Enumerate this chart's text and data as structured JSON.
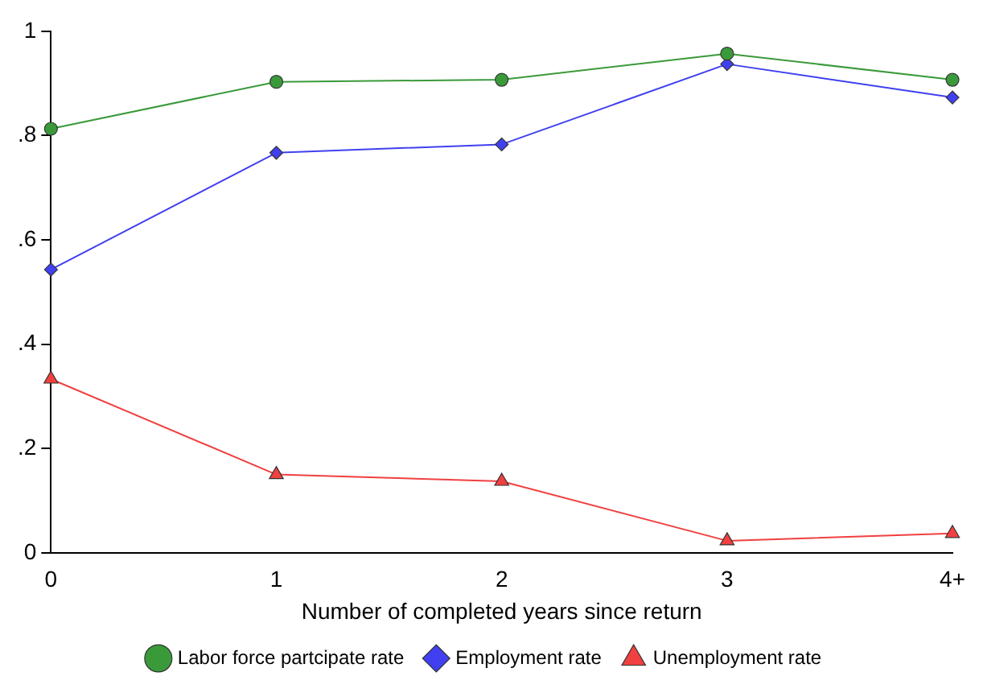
{
  "chart_data": {
    "type": "line",
    "xlabel": "Number of completed years since return",
    "categories": [
      "0",
      "1",
      "2",
      "3",
      "4+"
    ],
    "ylim": [
      0,
      1
    ],
    "yticks": [
      {
        "value": 0,
        "label": "0"
      },
      {
        "value": 0.2,
        "label": ".2"
      },
      {
        "value": 0.4,
        "label": ".4"
      },
      {
        "value": 0.6,
        "label": ".6"
      },
      {
        "value": 0.8,
        "label": ".8"
      },
      {
        "value": 1,
        "label": "1"
      }
    ],
    "grid": false,
    "legend": "bottom",
    "line_style": "solid",
    "series": [
      {
        "name": "Labor force partcipate rate",
        "color": "#3a9a3a",
        "marker": "circle",
        "values": [
          0.813,
          0.903,
          0.907,
          0.957,
          0.907
        ]
      },
      {
        "name": "Employment rate",
        "color": "#4040f0",
        "marker": "diamond",
        "values": [
          0.543,
          0.767,
          0.783,
          0.937,
          0.873
        ]
      },
      {
        "name": "Unemployment rate",
        "color": "#f04040",
        "marker": "triangle",
        "values": [
          0.333,
          0.15,
          0.137,
          0.023,
          0.037
        ]
      }
    ]
  }
}
